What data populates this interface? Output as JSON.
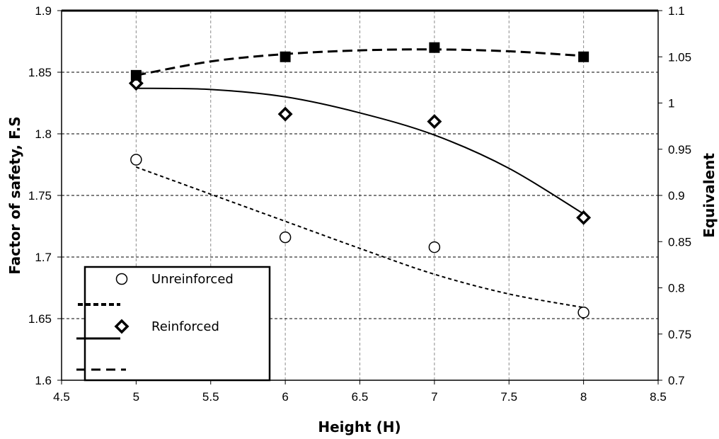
{
  "chart_data": {
    "type": "scatter",
    "xlabel": "Height (H)",
    "ylabel": "Factor of safety, F.S",
    "y2label": "Equivalent",
    "xlim": [
      4.5,
      8.5
    ],
    "ylim": [
      1.6,
      1.9
    ],
    "y2lim": [
      0.7,
      1.1
    ],
    "xticks": [
      "4.5",
      "5",
      "5.5",
      "6",
      "6.5",
      "7",
      "7.5",
      "8",
      "8.5"
    ],
    "yticks": [
      "1.6",
      "1.65",
      "1.7",
      "1.75",
      "1.8",
      "1.85",
      "1.9"
    ],
    "y2ticks": [
      "0.7",
      "0.75",
      "0.8",
      "0.85",
      "0.9",
      "0.95",
      "1",
      "1.05",
      "1.1"
    ],
    "grid": true,
    "legend_position": "bottom-left",
    "series": [
      {
        "name": "Unreinforced",
        "axis": "left",
        "marker": "circle-open",
        "x": [
          5,
          6,
          7,
          8
        ],
        "y": [
          1.779,
          1.716,
          1.708,
          1.655
        ],
        "trend": "short-dash",
        "trend_x": [
          5,
          5.5,
          6,
          6.5,
          7,
          7.5,
          8
        ],
        "trend_y": [
          1.773,
          1.751,
          1.729,
          1.707,
          1.686,
          1.67,
          1.659
        ]
      },
      {
        "name": "Reinforced",
        "axis": "left",
        "marker": "diamond-open",
        "x": [
          5,
          6,
          7,
          8
        ],
        "y": [
          1.841,
          1.816,
          1.81,
          1.732
        ],
        "trend": "solid",
        "trend_x": [
          5,
          5.5,
          6,
          6.5,
          7,
          7.5,
          8
        ],
        "trend_y": [
          1.837,
          1.836,
          1.83,
          1.817,
          1.799,
          1.772,
          1.735
        ]
      },
      {
        "name": "",
        "axis": "right",
        "marker": "square-filled",
        "x": [
          5,
          6,
          7,
          8
        ],
        "y": [
          1.03,
          1.05,
          1.06,
          1.05
        ],
        "trend": "long-dash",
        "trend_x": [
          5,
          5.5,
          6,
          6.5,
          7,
          7.5,
          8
        ],
        "trend_y": [
          1.03,
          1.045,
          1.053,
          1.057,
          1.058,
          1.056,
          1.051
        ]
      }
    ],
    "legend": [
      {
        "kind": "marker",
        "marker": "circle-open",
        "label": "Unreinforced"
      },
      {
        "kind": "line",
        "trend": "short-dash",
        "label": ""
      },
      {
        "kind": "marker",
        "marker": "diamond-open",
        "label": "Reinforced"
      },
      {
        "kind": "line",
        "trend": "solid",
        "label": ""
      },
      {
        "kind": "line",
        "trend": "long-dash",
        "label": ""
      }
    ]
  }
}
